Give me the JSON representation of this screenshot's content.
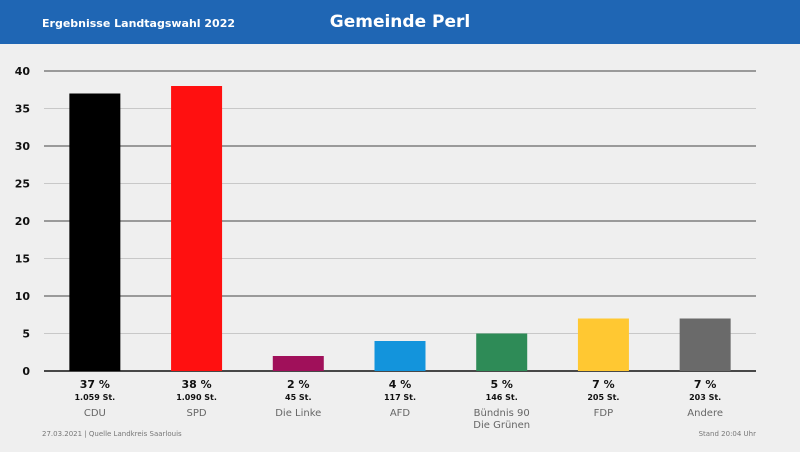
{
  "header": {
    "subtitle": "Ergebnisse Landtagswahl 2022",
    "title": "Gemeinde Perl",
    "color": "#1f66b4"
  },
  "footer": {
    "left": "27.03.2021 | Quelle Landkreis Saarlouis",
    "right": "Stand 20:04 Uhr"
  },
  "chart_data": {
    "type": "bar",
    "title": "Gemeinde Perl",
    "subtitle": "Ergebnisse Landtagswahl 2022",
    "ylim": [
      0,
      40
    ],
    "yticks": [
      0,
      5,
      10,
      15,
      20,
      25,
      30,
      35,
      40
    ],
    "grid": true,
    "categories": [
      {
        "label": [
          "CDU"
        ],
        "value": 37,
        "pct_label": "37 %",
        "votes": "1.059 St.",
        "color": "#000000"
      },
      {
        "label": [
          "SPD"
        ],
        "value": 38,
        "pct_label": "38 %",
        "votes": "1.090 St.",
        "color": "#ff1010"
      },
      {
        "label": [
          "Die Linke"
        ],
        "value": 2,
        "pct_label": "2 %",
        "votes": "45 St.",
        "color": "#a0105a"
      },
      {
        "label": [
          "AFD"
        ],
        "value": 4,
        "pct_label": "4 %",
        "votes": "117 St.",
        "color": "#1394dc"
      },
      {
        "label": [
          "Bündnis 90",
          "Die Grünen"
        ],
        "value": 5,
        "pct_label": "5 %",
        "votes": "146 St.",
        "color": "#2e8b57"
      },
      {
        "label": [
          "FDP"
        ],
        "value": 7,
        "pct_label": "7 %",
        "votes": "205 St.",
        "color": "#ffc832"
      },
      {
        "label": [
          "Andere"
        ],
        "value": 7,
        "pct_label": "7 %",
        "votes": "203 St.",
        "color": "#6a6a6a"
      }
    ]
  }
}
